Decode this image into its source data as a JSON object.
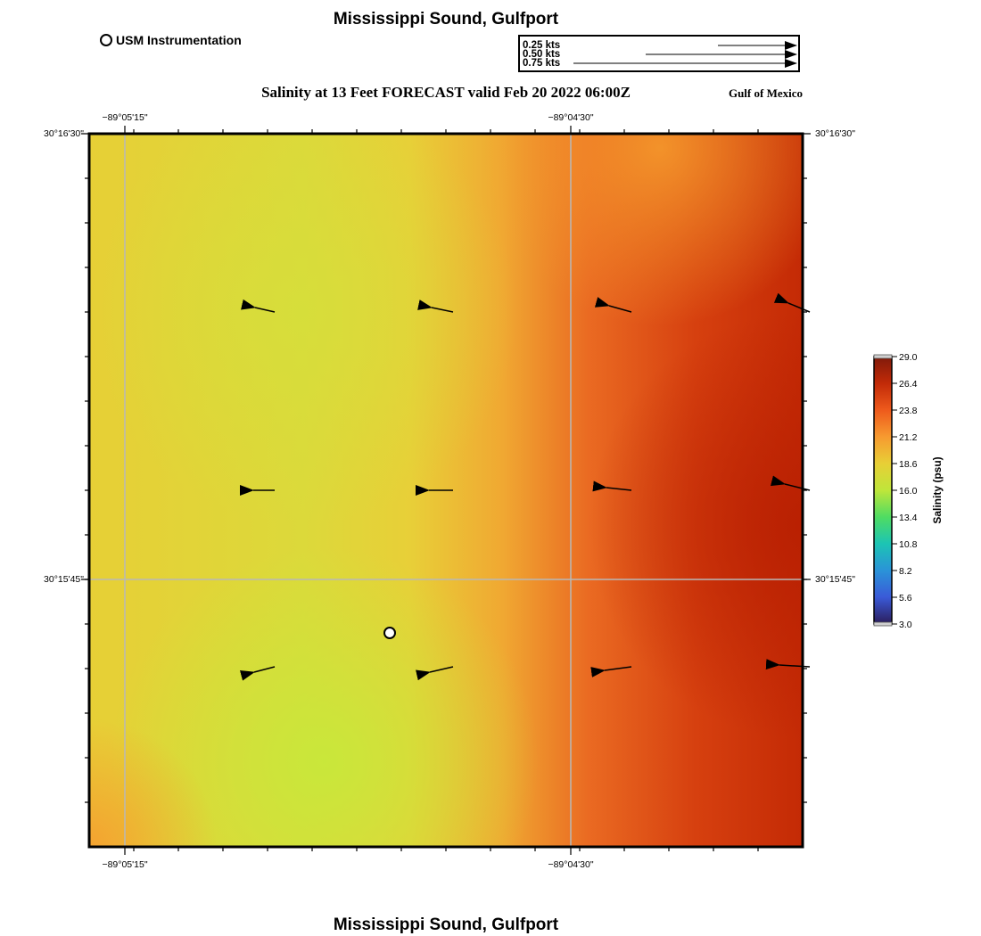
{
  "titles": {
    "top": "Mississippi Sound, Gulfport",
    "subtitle": "Salinity at 13 Feet FORECAST valid Feb 20 2022 06:00Z",
    "region": "Gulf of Mexico",
    "bottom": "Mississippi Sound, Gulfport"
  },
  "legend": {
    "usm_label": "USM Instrumentation"
  },
  "vector_scale": {
    "labels": [
      "0.25 kts",
      "0.50 kts",
      "0.75 kts"
    ],
    "values_kts": [
      0.25,
      0.5,
      0.75
    ]
  },
  "map": {
    "lon_ticks_top": [
      "−89°05'15\"",
      "−89°04'30\""
    ],
    "lon_ticks_bottom": [
      "−89°05'15\"",
      "−89°04'30\""
    ],
    "lat_ticks_left": [
      "30°16'30\"",
      "30°15'45\""
    ],
    "lat_ticks_right": [
      "30°16'30\"",
      "30°15'45\""
    ],
    "grid": true,
    "colors": {
      "low": "#c8e83a",
      "mid": "#e6d63a",
      "orange": "#f29a30",
      "high": "#c42a05"
    }
  },
  "colorbar": {
    "title": "Salinity (psu)",
    "ticks": [
      "29.0",
      "26.4",
      "23.8",
      "21.2",
      "18.6",
      "16.0",
      "13.4",
      "10.8",
      "8.2",
      "5.6",
      "3.0"
    ],
    "min": 3.0,
    "max": 29.0,
    "colors": [
      "#7f1a0a",
      "#c22a08",
      "#ee5a1c",
      "#f79a30",
      "#e8cf36",
      "#bfe63a",
      "#4fdc62",
      "#1cc4b4",
      "#2a93d8",
      "#3a5ad8",
      "#2b1c5a"
    ]
  }
}
